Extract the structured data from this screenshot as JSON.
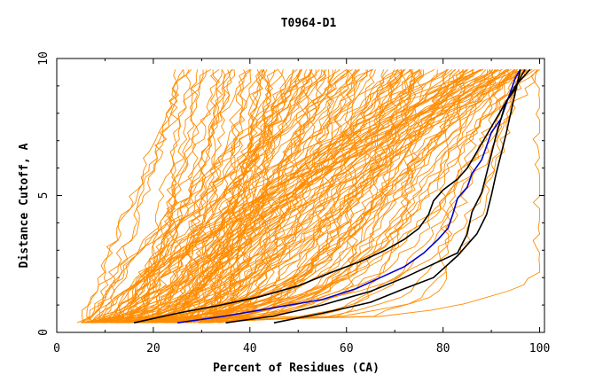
{
  "chart_data": {
    "type": "line",
    "title": "T0964-D1",
    "xlabel": "Percent of Residues (CA)",
    "ylabel": "Distance Cutoff, A",
    "xlim": [
      0,
      101
    ],
    "ylim": [
      0,
      10
    ],
    "x_ticks": [
      "0",
      "20",
      "40",
      "60",
      "80",
      "100"
    ],
    "y_ticks": [
      "0",
      "5",
      "10"
    ],
    "grid": false,
    "legend": "none",
    "colors": {
      "models": "#ff8c00",
      "black": "#000000",
      "blue": "#0000cc"
    },
    "background_models": {
      "count": 160,
      "y_start": 0.35,
      "y_end": 9.6,
      "x_start_range": [
        5,
        35
      ],
      "x_end_range": [
        23,
        100
      ],
      "note": "family of orange GDT curves"
    },
    "series": [
      {
        "color": "#000000",
        "x": [
          16,
          25,
          34,
          42,
          50,
          57,
          63,
          68,
          72,
          75,
          77,
          78,
          80,
          83,
          85,
          87,
          89,
          91,
          93,
          95,
          97,
          98
        ],
        "y": [
          0.35,
          0.7,
          1.0,
          1.3,
          1.7,
          2.2,
          2.6,
          3.0,
          3.4,
          3.8,
          4.3,
          4.8,
          5.2,
          5.6,
          6.0,
          6.6,
          7.2,
          7.8,
          8.4,
          9.0,
          9.4,
          9.6
        ]
      },
      {
        "color": "#0000cc",
        "x": [
          25,
          35,
          45,
          55,
          62,
          67,
          72,
          76,
          79,
          81,
          82,
          83,
          85,
          86,
          88,
          89,
          90,
          92,
          93,
          94,
          95,
          96
        ],
        "y": [
          0.35,
          0.6,
          0.9,
          1.2,
          1.6,
          2.0,
          2.4,
          2.9,
          3.4,
          3.8,
          4.3,
          4.9,
          5.3,
          5.8,
          6.3,
          6.8,
          7.3,
          7.8,
          8.3,
          8.8,
          9.3,
          9.6
        ]
      },
      {
        "color": "#000000",
        "x": [
          35,
          45,
          55,
          65,
          72,
          78,
          83,
          85,
          86,
          88,
          89,
          90,
          91,
          92,
          93,
          95,
          96,
          97
        ],
        "y": [
          0.35,
          0.6,
          1.0,
          1.5,
          2.0,
          2.5,
          2.9,
          3.6,
          4.4,
          5.1,
          5.8,
          6.5,
          7.2,
          7.8,
          8.4,
          8.9,
          9.3,
          9.6
        ]
      },
      {
        "color": "#000000",
        "x": [
          45,
          55,
          65,
          72,
          78,
          83,
          87,
          89,
          90,
          91,
          92,
          93,
          94,
          95,
          96
        ],
        "y": [
          0.35,
          0.7,
          1.1,
          1.6,
          2.0,
          2.8,
          3.6,
          4.3,
          5.0,
          5.8,
          6.5,
          7.2,
          8.0,
          8.8,
          9.6
        ]
      }
    ]
  }
}
